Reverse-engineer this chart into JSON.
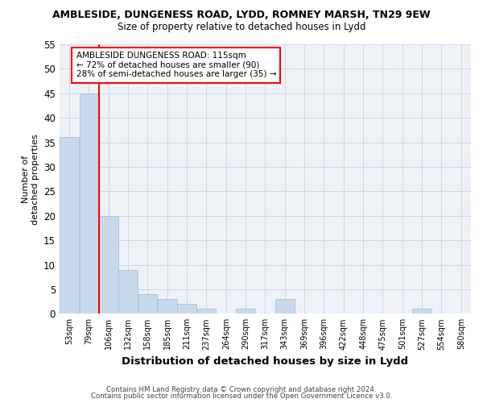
{
  "title": "AMBLESIDE, DUNGENESS ROAD, LYDD, ROMNEY MARSH, TN29 9EW",
  "subtitle": "Size of property relative to detached houses in Lydd",
  "xlabel": "Distribution of detached houses by size in Lydd",
  "ylabel": "Number of\ndetached properties",
  "bar_color": "#c8d9eb",
  "bar_edge_color": "#a8c0d8",
  "grid_color": "#c8d8e8",
  "background_color": "#eef2f7",
  "tick_labels": [
    "53sqm",
    "79sqm",
    "106sqm",
    "132sqm",
    "158sqm",
    "185sqm",
    "211sqm",
    "237sqm",
    "264sqm",
    "290sqm",
    "317sqm",
    "343sqm",
    "369sqm",
    "396sqm",
    "422sqm",
    "448sqm",
    "475sqm",
    "501sqm",
    "527sqm",
    "554sqm",
    "580sqm"
  ],
  "bar_values": [
    36,
    45,
    20,
    9,
    4,
    3,
    2,
    1,
    0,
    1,
    0,
    3,
    0,
    0,
    0,
    0,
    0,
    0,
    1,
    0,
    0
  ],
  "ylim": [
    0,
    55
  ],
  "yticks": [
    0,
    5,
    10,
    15,
    20,
    25,
    30,
    35,
    40,
    45,
    50,
    55
  ],
  "red_line_x": 2.5,
  "annotation_text": "AMBLESIDE DUNGENESS ROAD: 115sqm\n← 72% of detached houses are smaller (90)\n28% of semi-detached houses are larger (35) →",
  "footer_line1": "Contains HM Land Registry data © Crown copyright and database right 2024.",
  "footer_line2": "Contains public sector information licensed under the Open Government Licence v3.0."
}
